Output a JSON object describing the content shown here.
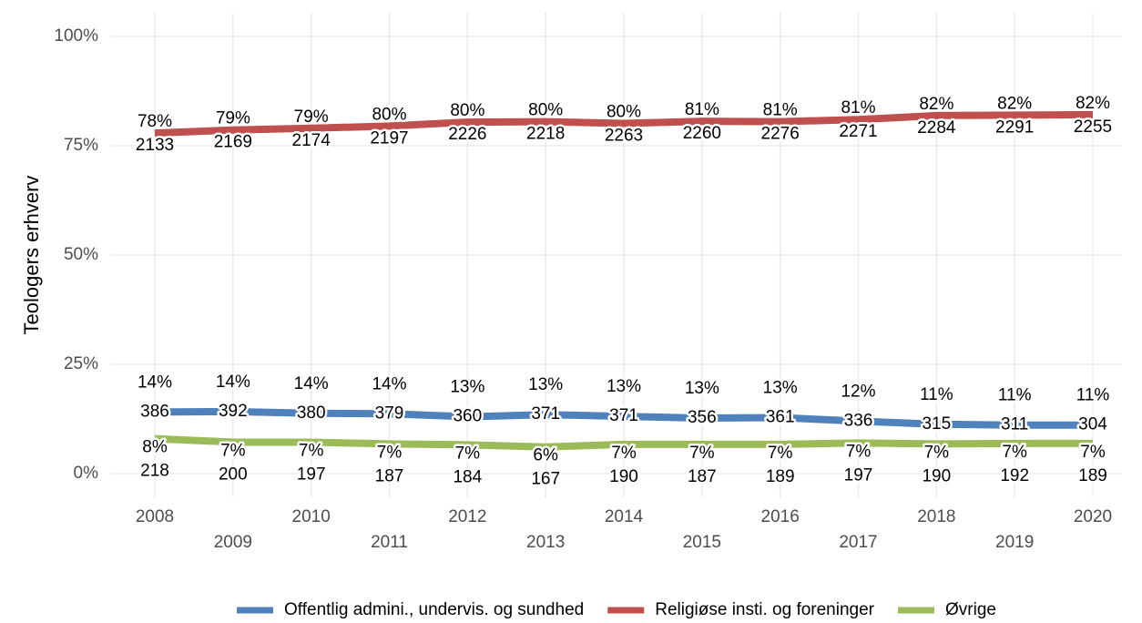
{
  "chart_data": {
    "type": "line",
    "y_label": "Teologers erhverv",
    "categories": [
      "2008",
      "2009",
      "2010",
      "2011",
      "2012",
      "2013",
      "2014",
      "2015",
      "2016",
      "2017",
      "2018",
      "2019",
      "2020"
    ],
    "ylim": [
      0,
      100
    ],
    "yticks": [
      {
        "value": 0,
        "label": "0%"
      },
      {
        "value": 25,
        "label": "25%"
      },
      {
        "value": 50,
        "label": "50%"
      },
      {
        "value": 75,
        "label": "75%"
      },
      {
        "value": 100,
        "label": "100%"
      }
    ],
    "grid": true,
    "legend": "bottom",
    "series": [
      {
        "name": "Offentlig admini., undervis. og sundhed",
        "color": "#4f81bd",
        "values": [
          14.1,
          14.2,
          13.8,
          13.7,
          13.0,
          13.5,
          13.1,
          12.7,
          12.8,
          12.0,
          11.3,
          11.1,
          11.1
        ],
        "value_labels": [
          "14%",
          "14%",
          "14%",
          "14%",
          "13%",
          "13%",
          "13%",
          "13%",
          "13%",
          "12%",
          "11%",
          "11%",
          "11%"
        ],
        "counts": [
          386,
          392,
          380,
          379,
          360,
          371,
          371,
          356,
          361,
          336,
          315,
          311,
          304
        ]
      },
      {
        "name": "Religiøse insti. og foreninger",
        "color": "#c0504d",
        "values": [
          77.9,
          78.6,
          79.0,
          79.5,
          80.4,
          80.5,
          80.1,
          80.6,
          80.5,
          81.0,
          81.9,
          82.0,
          82.1
        ],
        "value_labels": [
          "78%",
          "79%",
          "79%",
          "80%",
          "80%",
          "80%",
          "80%",
          "81%",
          "81%",
          "81%",
          "82%",
          "82%",
          "82%"
        ],
        "counts": [
          2133,
          2169,
          2174,
          2197,
          2226,
          2218,
          2263,
          2260,
          2276,
          2271,
          2284,
          2291,
          2255
        ]
      },
      {
        "name": "Øvrige",
        "color": "#9bbb59",
        "values": [
          8.0,
          7.2,
          7.2,
          6.8,
          6.6,
          6.1,
          6.7,
          6.7,
          6.7,
          7.0,
          6.8,
          6.9,
          6.9
        ],
        "value_labels": [
          "8%",
          "7%",
          "7%",
          "7%",
          "7%",
          "6%",
          "7%",
          "7%",
          "7%",
          "7%",
          "7%",
          "7%",
          "7%"
        ],
        "counts": [
          218,
          200,
          197,
          187,
          184,
          167,
          190,
          187,
          189,
          197,
          190,
          192,
          189
        ]
      }
    ]
  }
}
